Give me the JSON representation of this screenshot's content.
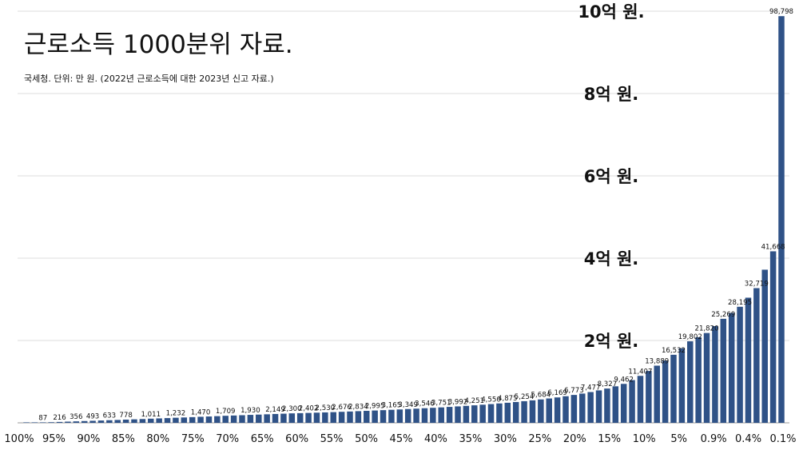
{
  "chart_data": {
    "type": "bar",
    "title": "근로소득 1000분위 자료.",
    "subtitle": "국세청. 단위: 만 원. (2022년 근로소득에 대한 2023년 신고 자료.)",
    "unit": "만 원",
    "ylim": [
      0,
      100000
    ],
    "grid": true,
    "y_ticks": [
      {
        "value": 20000,
        "label": "2억 원."
      },
      {
        "value": 40000,
        "label": "4억 원."
      },
      {
        "value": 60000,
        "label": "6억 원."
      },
      {
        "value": 80000,
        "label": "8억 원."
      },
      {
        "value": 100000,
        "label": "10억 원."
      }
    ],
    "x_tick_labels": [
      "100%",
      "95%",
      "90%",
      "85%",
      "80%",
      "75%",
      "70%",
      "65%",
      "60%",
      "55%",
      "50%",
      "45%",
      "40%",
      "35%",
      "30%",
      "25%",
      "20%",
      "15%",
      "10%",
      "5%",
      "0.9%",
      "0.4%",
      "0.1%"
    ],
    "values": [
      5,
      30,
      87,
      150,
      216,
      290,
      356,
      430,
      493,
      560,
      633,
      700,
      778,
      850,
      920,
      1011,
      1080,
      1150,
      1232,
      1300,
      1380,
      1470,
      1540,
      1620,
      1709,
      1780,
      1850,
      1930,
      2000,
      2070,
      2149,
      2220,
      2300,
      2350,
      2402,
      2470,
      2530,
      2600,
      2676,
      2750,
      2834,
      2910,
      2995,
      3080,
      3165,
      3250,
      3349,
      3440,
      3546,
      3650,
      3751,
      3870,
      3992,
      4120,
      4251,
      4400,
      4550,
      4710,
      4875,
      5060,
      5254,
      5460,
      5684,
      5920,
      6169,
      6460,
      6773,
      7110,
      7477,
      7880,
      8327,
      8870,
      9462,
      10380,
      11407,
      12600,
      13889,
      15150,
      16532,
      18100,
      19802,
      20800,
      21820,
      23500,
      25269,
      26700,
      28195,
      30400,
      32719,
      37200,
      41668,
      98798
    ],
    "data_labels": [
      {
        "i": 2,
        "label": "87"
      },
      {
        "i": 4,
        "label": "216"
      },
      {
        "i": 6,
        "label": "356"
      },
      {
        "i": 8,
        "label": "493"
      },
      {
        "i": 10,
        "label": "633"
      },
      {
        "i": 12,
        "label": "778"
      },
      {
        "i": 15,
        "label": "1,011"
      },
      {
        "i": 18,
        "label": "1,232"
      },
      {
        "i": 21,
        "label": "1,470"
      },
      {
        "i": 24,
        "label": "1,709"
      },
      {
        "i": 27,
        "label": "1,930"
      },
      {
        "i": 30,
        "label": "2,149"
      },
      {
        "i": 32,
        "label": "2,300"
      },
      {
        "i": 34,
        "label": "2,402"
      },
      {
        "i": 36,
        "label": "2,530"
      },
      {
        "i": 38,
        "label": "2,676"
      },
      {
        "i": 40,
        "label": "2,834"
      },
      {
        "i": 42,
        "label": "2,995"
      },
      {
        "i": 44,
        "label": "3,165"
      },
      {
        "i": 46,
        "label": "3,349"
      },
      {
        "i": 48,
        "label": "3,546"
      },
      {
        "i": 50,
        "label": "3,751"
      },
      {
        "i": 52,
        "label": "3,992"
      },
      {
        "i": 54,
        "label": "4,251"
      },
      {
        "i": 56,
        "label": "4,550"
      },
      {
        "i": 58,
        "label": "4,875"
      },
      {
        "i": 60,
        "label": "5,254"
      },
      {
        "i": 62,
        "label": "5,684"
      },
      {
        "i": 64,
        "label": "6,169"
      },
      {
        "i": 66,
        "label": "6,773"
      },
      {
        "i": 68,
        "label": "7,477"
      },
      {
        "i": 70,
        "label": "8,327"
      },
      {
        "i": 72,
        "label": "9,462"
      },
      {
        "i": 74,
        "label": "11,407"
      },
      {
        "i": 76,
        "label": "13,889"
      },
      {
        "i": 78,
        "label": "16,532"
      },
      {
        "i": 80,
        "label": "19,802"
      },
      {
        "i": 82,
        "label": "21,820"
      },
      {
        "i": 84,
        "label": "25,269"
      },
      {
        "i": 86,
        "label": "28,195"
      },
      {
        "i": 88,
        "label": "32,719"
      },
      {
        "i": 90,
        "label": "41,668"
      },
      {
        "i": 91,
        "label": "98,798"
      }
    ],
    "colors": {
      "bar": "#2f5287",
      "grid": "#dcdcdc",
      "text": "#111111"
    }
  }
}
